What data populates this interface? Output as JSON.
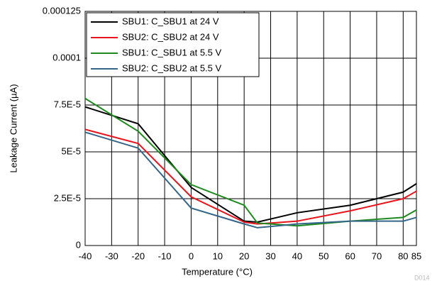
{
  "chart_data": {
    "type": "line",
    "xlabel": "Temperature (°C)",
    "ylabel": "Leakage Current (µA)",
    "watermark": "D014",
    "x": [
      -40,
      -20,
      0,
      20,
      25,
      40,
      60,
      80,
      85
    ],
    "series": [
      {
        "name": "SBU1: C_SBU1 at 24 V",
        "color": "#000000",
        "values": [
          7.4e-05,
          6.5e-05,
          3.1e-05,
          1.3e-05,
          1.25e-05,
          1.75e-05,
          2.15e-05,
          2.85e-05,
          3.3e-05
        ]
      },
      {
        "name": "SBU2: C_SBU2 at 24 V",
        "color": "#e8141c",
        "values": [
          6.2e-05,
          5.45e-05,
          2.6e-05,
          1.25e-05,
          1.15e-05,
          1.3e-05,
          1.85e-05,
          2.5e-05,
          2.9e-05
        ]
      },
      {
        "name": "SBU1: C_SBU1 at 5.5 V",
        "color": "#1e8a1e",
        "values": [
          7.85e-05,
          6.1e-05,
          3.25e-05,
          2.15e-05,
          1.2e-05,
          1.05e-05,
          1.3e-05,
          1.5e-05,
          1.9e-05
        ]
      },
      {
        "name": "SBU2: C_SBU2 at 5.5 V",
        "color": "#336688",
        "values": [
          6.05e-05,
          5.2e-05,
          2e-05,
          1.15e-05,
          9.5e-06,
          1.15e-05,
          1.3e-05,
          1.3e-05,
          1.5e-05
        ]
      }
    ],
    "xlim": [
      -40,
      85
    ],
    "xticks": [
      -40,
      -30,
      -20,
      -10,
      0,
      10,
      20,
      30,
      40,
      50,
      60,
      70,
      80,
      85
    ],
    "ylim": [
      0,
      0.000125
    ],
    "yticks": [
      0,
      {
        "value": 2.5e-05,
        "label": "2.5E-5"
      },
      {
        "value": 5e-05,
        "label": "5E-5"
      },
      {
        "value": 7.5e-05,
        "label": "7.5E-5"
      },
      0.0001,
      0.000125
    ],
    "grid": true,
    "legend": "top-left"
  }
}
